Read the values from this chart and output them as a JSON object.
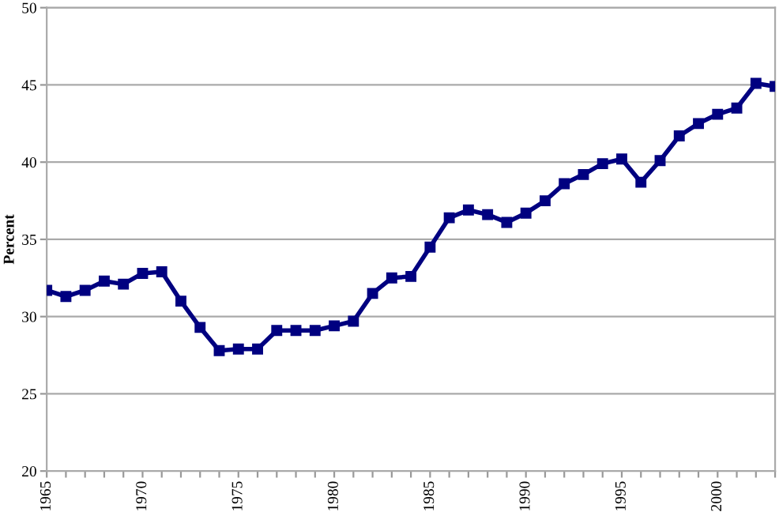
{
  "chart_data": {
    "type": "line",
    "ylabel": "Percent",
    "x": [
      1965,
      1966,
      1967,
      1968,
      1969,
      1970,
      1971,
      1972,
      1973,
      1974,
      1975,
      1976,
      1977,
      1978,
      1979,
      1980,
      1981,
      1982,
      1983,
      1984,
      1985,
      1986,
      1987,
      1988,
      1989,
      1990,
      1991,
      1992,
      1993,
      1994,
      1995,
      1996,
      1997,
      1998,
      1999,
      2000,
      2001,
      2002,
      2003
    ],
    "series": [
      {
        "color": "#000080",
        "values": [
          31.7,
          31.3,
          31.7,
          32.3,
          32.1,
          32.8,
          32.9,
          31.0,
          29.3,
          27.8,
          27.9,
          27.9,
          29.1,
          29.1,
          29.1,
          29.4,
          29.7,
          31.5,
          32.5,
          32.6,
          34.5,
          36.4,
          36.9,
          36.6,
          36.1,
          36.7,
          37.5,
          38.6,
          39.2,
          39.9,
          40.2,
          38.7,
          40.1,
          41.7,
          42.5,
          43.1,
          43.5,
          45.1,
          44.9
        ]
      }
    ],
    "xlim": [
      1965,
      2003
    ],
    "xticks": [
      1965,
      {
        "value": 1966,
        "label": null
      },
      {
        "value": 1967,
        "label": null
      },
      {
        "value": 1968,
        "label": null
      },
      {
        "value": 1969,
        "label": null
      },
      1970,
      {
        "value": 1971,
        "label": null
      },
      {
        "value": 1972,
        "label": null
      },
      {
        "value": 1973,
        "label": null
      },
      {
        "value": 1974,
        "label": null
      },
      1975,
      {
        "value": 1976,
        "label": null
      },
      {
        "value": 1977,
        "label": null
      },
      {
        "value": 1978,
        "label": null
      },
      {
        "value": 1979,
        "label": null
      },
      1980,
      {
        "value": 1981,
        "label": null
      },
      {
        "value": 1982,
        "label": null
      },
      {
        "value": 1983,
        "label": null
      },
      {
        "value": 1984,
        "label": null
      },
      1985,
      {
        "value": 1986,
        "label": null
      },
      {
        "value": 1987,
        "label": null
      },
      {
        "value": 1988,
        "label": null
      },
      {
        "value": 1989,
        "label": null
      },
      1990,
      {
        "value": 1991,
        "label": null
      },
      {
        "value": 1992,
        "label": null
      },
      {
        "value": 1993,
        "label": null
      },
      {
        "value": 1994,
        "label": null
      },
      1995,
      {
        "value": 1996,
        "label": null
      },
      {
        "value": 1997,
        "label": null
      },
      {
        "value": 1998,
        "label": null
      },
      {
        "value": 1999,
        "label": null
      },
      2000,
      {
        "value": 2001,
        "label": null
      },
      {
        "value": 2002,
        "label": null
      },
      {
        "value": 2003,
        "label": null
      }
    ],
    "ylim": [
      20,
      50
    ],
    "yticks": [
      20,
      25,
      30,
      35,
      40,
      45,
      50
    ],
    "grid": "y",
    "marker": "square",
    "line_style": "solid"
  }
}
